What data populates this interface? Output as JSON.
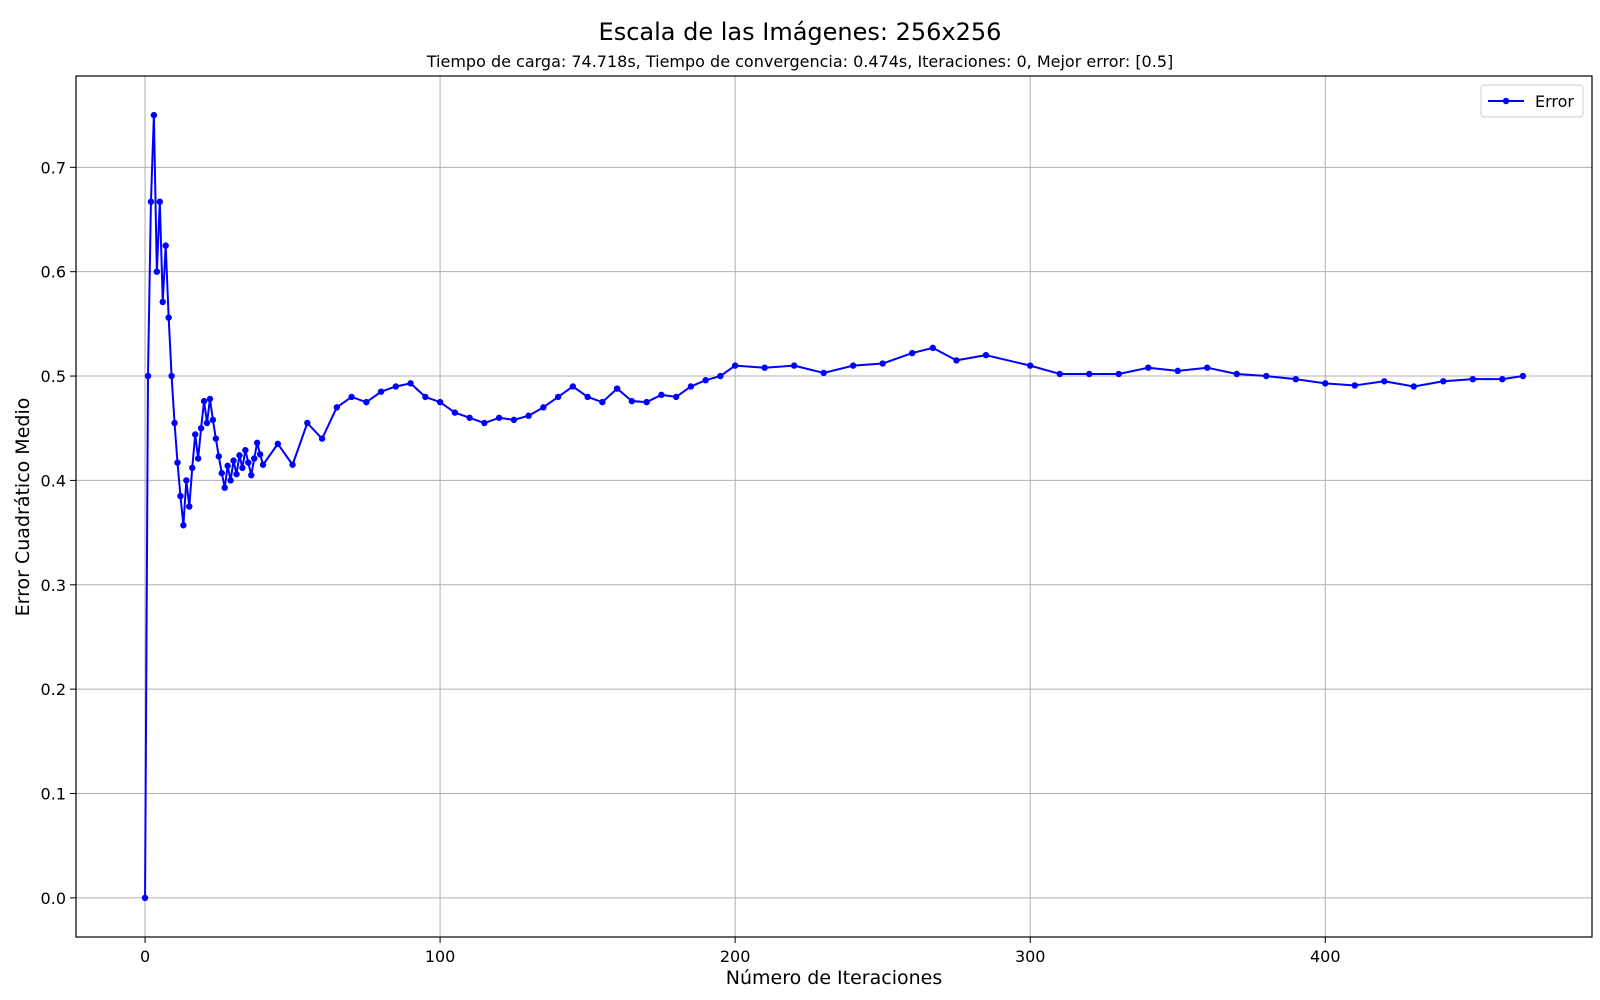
{
  "chart_data": {
    "type": "line",
    "title": "Escala de las Imágenes: 256x256",
    "subtitle": "Tiempo de carga: 74.718s, Tiempo de convergencia: 0.474s, Iteraciones: 0, Mejor error: [0.5]",
    "xlabel": "Número de Iteraciones",
    "ylabel": "Error Cuadrático Medio",
    "xlim": [
      -23.4,
      490.4
    ],
    "ylim": [
      -0.0375,
      0.7875
    ],
    "xticks": [
      0,
      100,
      200,
      300,
      400
    ],
    "xtick_labels": [
      "0",
      "100",
      "200",
      "300",
      "400"
    ],
    "yticks": [
      0.0,
      0.1,
      0.2,
      0.3,
      0.4,
      0.5,
      0.6,
      0.7
    ],
    "ytick_labels": [
      "0.0",
      "0.1",
      "0.2",
      "0.3",
      "0.4",
      "0.5",
      "0.6",
      "0.7"
    ],
    "grid": true,
    "legend_position": "top-right",
    "series": [
      {
        "name": "Error",
        "color": "#0000ff",
        "marker": "circle",
        "x": [
          0,
          1,
          2,
          3,
          4,
          5,
          6,
          7,
          8,
          9,
          10,
          11,
          12,
          13,
          14,
          15,
          16,
          17,
          18,
          19,
          20,
          21,
          22,
          23,
          24,
          25,
          26,
          27,
          28,
          29,
          30,
          31,
          32,
          33,
          34,
          35,
          36,
          37,
          38,
          39,
          40,
          45,
          50,
          55,
          60,
          65,
          70,
          75,
          80,
          85,
          90,
          95,
          100,
          105,
          110,
          115,
          120,
          125,
          130,
          135,
          140,
          145,
          150,
          155,
          160,
          165,
          170,
          175,
          180,
          185,
          190,
          195,
          200,
          210,
          220,
          230,
          240,
          250,
          260,
          267,
          275,
          285,
          300,
          310,
          320,
          330,
          340,
          350,
          360,
          370,
          380,
          390,
          400,
          410,
          420,
          430,
          440,
          450,
          460,
          467
        ],
        "values": [
          0.0,
          0.5,
          0.667,
          0.75,
          0.6,
          0.667,
          0.571,
          0.625,
          0.556,
          0.5,
          0.455,
          0.417,
          0.385,
          0.357,
          0.4,
          0.375,
          0.412,
          0.444,
          0.421,
          0.45,
          0.476,
          0.455,
          0.478,
          0.458,
          0.44,
          0.423,
          0.407,
          0.393,
          0.414,
          0.4,
          0.419,
          0.406,
          0.424,
          0.412,
          0.429,
          0.417,
          0.405,
          0.421,
          0.436,
          0.425,
          0.415,
          0.435,
          0.415,
          0.455,
          0.44,
          0.47,
          0.48,
          0.475,
          0.485,
          0.49,
          0.493,
          0.48,
          0.475,
          0.465,
          0.46,
          0.455,
          0.46,
          0.458,
          0.462,
          0.47,
          0.48,
          0.49,
          0.48,
          0.475,
          0.488,
          0.476,
          0.475,
          0.482,
          0.48,
          0.49,
          0.496,
          0.5,
          0.51,
          0.508,
          0.51,
          0.503,
          0.51,
          0.512,
          0.522,
          0.527,
          0.515,
          0.52,
          0.51,
          0.502,
          0.502,
          0.502,
          0.508,
          0.505,
          0.508,
          0.502,
          0.5,
          0.497,
          0.493,
          0.491,
          0.495,
          0.49,
          0.495,
          0.497,
          0.497,
          0.5
        ]
      }
    ]
  }
}
